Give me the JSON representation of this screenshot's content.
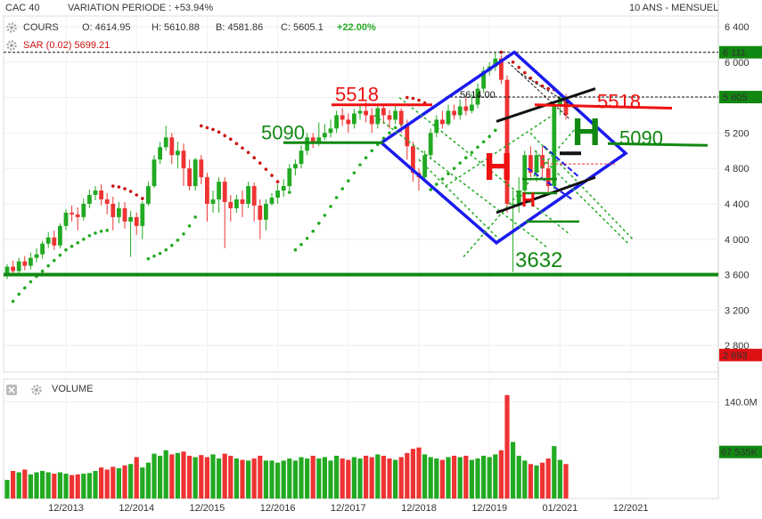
{
  "header": {
    "symbol": "CAC 40",
    "variation": "VARIATION PERIODE : +53.94%",
    "open": "O: 4614.95",
    "high": "H: 5610.88",
    "low": "B: 4581.86",
    "close": "C: 5605.1",
    "change": "+22.00%",
    "period": "10 ANS - MENSUEL",
    "indicator_label": "COURS",
    "sar_label": "SAR (0.02) 5699.21",
    "volume_label": "VOLUME"
  },
  "colors": {
    "up": "#22aa22",
    "down": "#ee3333",
    "sar": "#cc1111",
    "trend_blue": "#1a1aee",
    "support_green": "#118811",
    "resistance_red": "#ee1111",
    "price_badge": "#118811",
    "low_badge": "#dd1111"
  },
  "chart_data": {
    "type": "candlestick",
    "price_axis": {
      "min": 2500,
      "max": 6500,
      "ticks": [
        "6 400",
        "6 000",
        "5 600",
        "5 200",
        "4 800",
        "4 400",
        "4 000",
        "3 600",
        "3 200",
        "2 800"
      ]
    },
    "time_axis": {
      "ticks": [
        "12/2013",
        "12/2014",
        "12/2015",
        "12/2016",
        "12/2017",
        "12/2018",
        "12/2019",
        "01/2021",
        "12/2021"
      ]
    },
    "badges": [
      {
        "label": "6 111",
        "value": 6111,
        "color": "#118811"
      },
      {
        "label": "5 605",
        "value": 5605,
        "color": "#118811"
      },
      {
        "label": "2 693",
        "value": 2693,
        "color": "#dd1111"
      }
    ],
    "volume_axis": {
      "max": 160,
      "ticks": [
        "140.0M"
      ],
      "badge": "67 535K",
      "badge_value": 67.5
    },
    "annotations": {
      "left_5518": "5518",
      "right_5518": "5518",
      "left_5090": "5090",
      "right_5090": "5090",
      "bottom_3632": "3632",
      "peak_label": "5614.00",
      "big_H_red": "H",
      "small_H_red": "H",
      "big_H_green": "H"
    },
    "levels": {
      "support_3600": 3600,
      "resistance_5518": 5518,
      "support_5090": 5090,
      "peak": 6111,
      "low": 4000
    },
    "candles": [
      {
        "o": 3600,
        "c": 3690,
        "h": 3720,
        "l": 3550,
        "v": 27
      },
      {
        "o": 3690,
        "c": 3640,
        "h": 3760,
        "l": 3600,
        "v": 40
      },
      {
        "o": 3640,
        "c": 3750,
        "h": 3790,
        "l": 3620,
        "v": 38
      },
      {
        "o": 3750,
        "c": 3700,
        "h": 3810,
        "l": 3650,
        "v": 42
      },
      {
        "o": 3700,
        "c": 3790,
        "h": 3850,
        "l": 3660,
        "v": 35
      },
      {
        "o": 3790,
        "c": 3830,
        "h": 3900,
        "l": 3740,
        "v": 38
      },
      {
        "o": 3830,
        "c": 3950,
        "h": 3980,
        "l": 3780,
        "v": 40
      },
      {
        "o": 3950,
        "c": 4020,
        "h": 4080,
        "l": 3900,
        "v": 38
      },
      {
        "o": 4020,
        "c": 3930,
        "h": 4100,
        "l": 3880,
        "v": 36
      },
      {
        "o": 3930,
        "c": 4150,
        "h": 4180,
        "l": 3900,
        "v": 38
      },
      {
        "o": 4150,
        "c": 4300,
        "h": 4340,
        "l": 4100,
        "v": 36
      },
      {
        "o": 4300,
        "c": 4280,
        "h": 4380,
        "l": 4200,
        "v": 34
      },
      {
        "o": 4280,
        "c": 4250,
        "h": 4360,
        "l": 4100,
        "v": 35
      },
      {
        "o": 4250,
        "c": 4400,
        "h": 4460,
        "l": 4210,
        "v": 36
      },
      {
        "o": 4400,
        "c": 4500,
        "h": 4560,
        "l": 4350,
        "v": 37
      },
      {
        "o": 4500,
        "c": 4550,
        "h": 4600,
        "l": 4440,
        "v": 40
      },
      {
        "o": 4550,
        "c": 4450,
        "h": 4620,
        "l": 4380,
        "v": 45
      },
      {
        "o": 4450,
        "c": 4400,
        "h": 4520,
        "l": 4280,
        "v": 42
      },
      {
        "o": 4400,
        "c": 4250,
        "h": 4480,
        "l": 4100,
        "v": 46
      },
      {
        "o": 4250,
        "c": 4350,
        "h": 4420,
        "l": 4180,
        "v": 44
      },
      {
        "o": 4350,
        "c": 4200,
        "h": 4420,
        "l": 4120,
        "v": 48
      },
      {
        "o": 4200,
        "c": 4250,
        "h": 4320,
        "l": 3800,
        "v": 50
      },
      {
        "o": 4250,
        "c": 4150,
        "h": 4300,
        "l": 4050,
        "v": 60
      },
      {
        "o": 4150,
        "c": 4400,
        "h": 4430,
        "l": 4000,
        "v": 45
      },
      {
        "o": 4400,
        "c": 4600,
        "h": 4650,
        "l": 4380,
        "v": 52
      },
      {
        "o": 4600,
        "c": 4900,
        "h": 4950,
        "l": 4580,
        "v": 65
      },
      {
        "o": 4900,
        "c": 5040,
        "h": 5100,
        "l": 4850,
        "v": 62
      },
      {
        "o": 5040,
        "c": 5150,
        "h": 5280,
        "l": 5000,
        "v": 70
      },
      {
        "o": 5150,
        "c": 4950,
        "h": 5200,
        "l": 4850,
        "v": 64
      },
      {
        "o": 4950,
        "c": 5000,
        "h": 5100,
        "l": 4800,
        "v": 66
      },
      {
        "o": 5000,
        "c": 4800,
        "h": 5080,
        "l": 4600,
        "v": 68
      },
      {
        "o": 4800,
        "c": 4600,
        "h": 4900,
        "l": 4550,
        "v": 62
      },
      {
        "o": 4600,
        "c": 4900,
        "h": 4920,
        "l": 4550,
        "v": 60
      },
      {
        "o": 4900,
        "c": 4700,
        "h": 4950,
        "l": 4620,
        "v": 63
      },
      {
        "o": 4700,
        "c": 4400,
        "h": 4750,
        "l": 4200,
        "v": 60
      },
      {
        "o": 4400,
        "c": 4450,
        "h": 4550,
        "l": 4300,
        "v": 64
      },
      {
        "o": 4450,
        "c": 4650,
        "h": 4700,
        "l": 4300,
        "v": 58
      },
      {
        "o": 4650,
        "c": 4420,
        "h": 4700,
        "l": 3900,
        "v": 65
      },
      {
        "o": 4420,
        "c": 4350,
        "h": 4500,
        "l": 4200,
        "v": 62
      },
      {
        "o": 4350,
        "c": 4450,
        "h": 4500,
        "l": 4300,
        "v": 58
      },
      {
        "o": 4450,
        "c": 4400,
        "h": 4550,
        "l": 4250,
        "v": 56
      },
      {
        "o": 4400,
        "c": 4600,
        "h": 4650,
        "l": 4350,
        "v": 55
      },
      {
        "o": 4600,
        "c": 4380,
        "h": 4640,
        "l": 4200,
        "v": 58
      },
      {
        "o": 4380,
        "c": 4220,
        "h": 4450,
        "l": 4000,
        "v": 62
      },
      {
        "o": 4220,
        "c": 4400,
        "h": 4450,
        "l": 4100,
        "v": 55
      },
      {
        "o": 4400,
        "c": 4470,
        "h": 4520,
        "l": 4380,
        "v": 55
      },
      {
        "o": 4470,
        "c": 4550,
        "h": 4620,
        "l": 4400,
        "v": 52
      },
      {
        "o": 4550,
        "c": 4600,
        "h": 4680,
        "l": 4480,
        "v": 55
      },
      {
        "o": 4600,
        "c": 4800,
        "h": 4850,
        "l": 4550,
        "v": 58
      },
      {
        "o": 4800,
        "c": 4850,
        "h": 4900,
        "l": 4720,
        "v": 55
      },
      {
        "o": 4850,
        "c": 5000,
        "h": 5060,
        "l": 4800,
        "v": 60
      },
      {
        "o": 5000,
        "c": 5150,
        "h": 5200,
        "l": 4950,
        "v": 58
      },
      {
        "o": 5150,
        "c": 5100,
        "h": 5200,
        "l": 5030,
        "v": 62
      },
      {
        "o": 5100,
        "c": 5150,
        "h": 5320,
        "l": 5050,
        "v": 58
      },
      {
        "o": 5150,
        "c": 5200,
        "h": 5300,
        "l": 5120,
        "v": 60
      },
      {
        "o": 5200,
        "c": 5250,
        "h": 5350,
        "l": 5150,
        "v": 55
      },
      {
        "o": 5250,
        "c": 5400,
        "h": 5450,
        "l": 5200,
        "v": 62
      },
      {
        "o": 5400,
        "c": 5350,
        "h": 5480,
        "l": 5280,
        "v": 58
      },
      {
        "o": 5350,
        "c": 5300,
        "h": 5420,
        "l": 5200,
        "v": 56
      },
      {
        "o": 5300,
        "c": 5420,
        "h": 5470,
        "l": 5250,
        "v": 60
      },
      {
        "o": 5420,
        "c": 5450,
        "h": 5520,
        "l": 5350,
        "v": 58
      },
      {
        "o": 5450,
        "c": 5400,
        "h": 5550,
        "l": 5320,
        "v": 62
      },
      {
        "o": 5400,
        "c": 5300,
        "h": 5480,
        "l": 5200,
        "v": 60
      },
      {
        "o": 5300,
        "c": 5480,
        "h": 5500,
        "l": 5250,
        "v": 64
      },
      {
        "o": 5480,
        "c": 5400,
        "h": 5520,
        "l": 5300,
        "v": 62
      },
      {
        "o": 5400,
        "c": 5350,
        "h": 5460,
        "l": 5250,
        "v": 58
      },
      {
        "o": 5350,
        "c": 5450,
        "h": 5500,
        "l": 5300,
        "v": 56
      },
      {
        "o": 5450,
        "c": 5300,
        "h": 5480,
        "l": 5200,
        "v": 60
      },
      {
        "o": 5300,
        "c": 5050,
        "h": 5350,
        "l": 4900,
        "v": 66
      },
      {
        "o": 5050,
        "c": 4750,
        "h": 5100,
        "l": 4650,
        "v": 72
      },
      {
        "o": 4750,
        "c": 4700,
        "h": 4800,
        "l": 4550,
        "v": 74
      },
      {
        "o": 4700,
        "c": 4950,
        "h": 5000,
        "l": 4650,
        "v": 64
      },
      {
        "o": 4950,
        "c": 5200,
        "h": 5250,
        "l": 4900,
        "v": 60
      },
      {
        "o": 5200,
        "c": 5350,
        "h": 5400,
        "l": 5150,
        "v": 58
      },
      {
        "o": 5350,
        "c": 5300,
        "h": 5450,
        "l": 5250,
        "v": 56
      },
      {
        "o": 5300,
        "c": 5450,
        "h": 5520,
        "l": 5280,
        "v": 60
      },
      {
        "o": 5450,
        "c": 5400,
        "h": 5520,
        "l": 5350,
        "v": 62
      },
      {
        "o": 5400,
        "c": 5500,
        "h": 5580,
        "l": 5350,
        "v": 60
      },
      {
        "o": 5500,
        "c": 5450,
        "h": 5600,
        "l": 5400,
        "v": 62
      },
      {
        "o": 5450,
        "c": 5520,
        "h": 5640,
        "l": 5420,
        "v": 56
      },
      {
        "o": 5520,
        "c": 5700,
        "h": 5760,
        "l": 5480,
        "v": 58
      },
      {
        "o": 5700,
        "c": 5900,
        "h": 5950,
        "l": 5650,
        "v": 62
      },
      {
        "o": 5900,
        "c": 5950,
        "h": 6000,
        "l": 5850,
        "v": 60
      },
      {
        "o": 5950,
        "c": 6040,
        "h": 6111,
        "l": 5900,
        "v": 64
      },
      {
        "o": 6040,
        "c": 5800,
        "h": 6080,
        "l": 5750,
        "v": 70
      },
      {
        "o": 5800,
        "c": 4400,
        "h": 5850,
        "l": 4300,
        "v": 150
      },
      {
        "o": 4400,
        "c": 4400,
        "h": 4550,
        "l": 3632,
        "v": 82
      },
      {
        "o": 4400,
        "c": 4550,
        "h": 4700,
        "l": 4300,
        "v": 62
      },
      {
        "o": 4550,
        "c": 4950,
        "h": 5000,
        "l": 4450,
        "v": 55
      },
      {
        "o": 4950,
        "c": 4750,
        "h": 5050,
        "l": 4700,
        "v": 50
      },
      {
        "o": 4750,
        "c": 4950,
        "h": 5000,
        "l": 4650,
        "v": 48
      },
      {
        "o": 4950,
        "c": 4800,
        "h": 5050,
        "l": 4700,
        "v": 52
      },
      {
        "o": 4800,
        "c": 4600,
        "h": 4900,
        "l": 4500,
        "v": 58
      },
      {
        "o": 4600,
        "c": 5520,
        "h": 5560,
        "l": 4560,
        "v": 76
      },
      {
        "o": 5520,
        "c": 5600,
        "h": 5620,
        "l": 5400,
        "v": 56
      },
      {
        "o": 5600,
        "c": 5400,
        "h": 5640,
        "l": 5350,
        "v": 50
      }
    ],
    "sar_dots": [
      {
        "i": 1,
        "v": 3300
      },
      {
        "i": 2,
        "v": 3380
      },
      {
        "i": 3,
        "v": 3450
      },
      {
        "i": 4,
        "v": 3520
      },
      {
        "i": 5,
        "v": 3580
      },
      {
        "i": 6,
        "v": 3640
      },
      {
        "i": 7,
        "v": 3700
      },
      {
        "i": 8,
        "v": 3760
      },
      {
        "i": 9,
        "v": 3820
      },
      {
        "i": 10,
        "v": 3880
      },
      {
        "i": 11,
        "v": 3920
      },
      {
        "i": 12,
        "v": 3960
      },
      {
        "i": 13,
        "v": 4000
      },
      {
        "i": 14,
        "v": 4040
      },
      {
        "i": 15,
        "v": 4070
      },
      {
        "i": 16,
        "v": 4090
      },
      {
        "i": 17,
        "v": 4100
      },
      {
        "i": 18,
        "v": 4600
      },
      {
        "i": 19,
        "v": 4590
      },
      {
        "i": 20,
        "v": 4570
      },
      {
        "i": 21,
        "v": 4540
      },
      {
        "i": 22,
        "v": 4500
      },
      {
        "i": 23,
        "v": 4460
      },
      {
        "i": 24,
        "v": 3780
      },
      {
        "i": 25,
        "v": 3810
      },
      {
        "i": 26,
        "v": 3840
      },
      {
        "i": 27,
        "v": 3880
      },
      {
        "i": 28,
        "v": 3930
      },
      {
        "i": 29,
        "v": 3990
      },
      {
        "i": 30,
        "v": 4060
      },
      {
        "i": 31,
        "v": 4150
      },
      {
        "i": 32,
        "v": 4250
      },
      {
        "i": 33,
        "v": 5280
      },
      {
        "i": 34,
        "v": 5260
      },
      {
        "i": 35,
        "v": 5240
      },
      {
        "i": 36,
        "v": 5210
      },
      {
        "i": 37,
        "v": 5170
      },
      {
        "i": 38,
        "v": 5130
      },
      {
        "i": 39,
        "v": 5080
      },
      {
        "i": 40,
        "v": 5030
      },
      {
        "i": 41,
        "v": 4980
      },
      {
        "i": 42,
        "v": 4920
      },
      {
        "i": 43,
        "v": 4860
      },
      {
        "i": 44,
        "v": 4790
      },
      {
        "i": 45,
        "v": 4720
      },
      {
        "i": 46,
        "v": 4650
      },
      {
        "i": 47,
        "v": 4580
      },
      {
        "i": 48,
        "v": 4530
      },
      {
        "i": 49,
        "v": 3880
      },
      {
        "i": 50,
        "v": 3940
      },
      {
        "i": 51,
        "v": 4010
      },
      {
        "i": 52,
        "v": 4090
      },
      {
        "i": 53,
        "v": 4180
      },
      {
        "i": 54,
        "v": 4270
      },
      {
        "i": 55,
        "v": 4370
      },
      {
        "i": 56,
        "v": 4470
      },
      {
        "i": 57,
        "v": 4570
      },
      {
        "i": 58,
        "v": 4660
      },
      {
        "i": 59,
        "v": 4750
      },
      {
        "i": 60,
        "v": 4840
      },
      {
        "i": 61,
        "v": 4920
      },
      {
        "i": 62,
        "v": 5000
      },
      {
        "i": 63,
        "v": 5070
      },
      {
        "i": 64,
        "v": 5140
      },
      {
        "i": 65,
        "v": 5200
      },
      {
        "i": 66,
        "v": 5260
      },
      {
        "i": 67,
        "v": 5300
      },
      {
        "i": 68,
        "v": 5600
      },
      {
        "i": 69,
        "v": 5590
      },
      {
        "i": 70,
        "v": 5570
      },
      {
        "i": 71,
        "v": 5540
      },
      {
        "i": 72,
        "v": 4560
      },
      {
        "i": 73,
        "v": 4620
      },
      {
        "i": 74,
        "v": 4680
      },
      {
        "i": 75,
        "v": 4740
      },
      {
        "i": 76,
        "v": 4800
      },
      {
        "i": 77,
        "v": 4860
      },
      {
        "i": 78,
        "v": 4920
      },
      {
        "i": 79,
        "v": 4980
      },
      {
        "i": 80,
        "v": 5040
      },
      {
        "i": 81,
        "v": 5100
      },
      {
        "i": 82,
        "v": 5160
      },
      {
        "i": 83,
        "v": 5230
      },
      {
        "i": 84,
        "v": 6111
      },
      {
        "i": 85,
        "v": 6060
      },
      {
        "i": 86,
        "v": 6000
      },
      {
        "i": 87,
        "v": 5940
      },
      {
        "i": 88,
        "v": 5880
      },
      {
        "i": 89,
        "v": 5820
      },
      {
        "i": 90,
        "v": 5770
      },
      {
        "i": 91,
        "v": 5730
      },
      {
        "i": 92,
        "v": 5700
      },
      {
        "i": 93,
        "v": 5690
      }
    ]
  }
}
